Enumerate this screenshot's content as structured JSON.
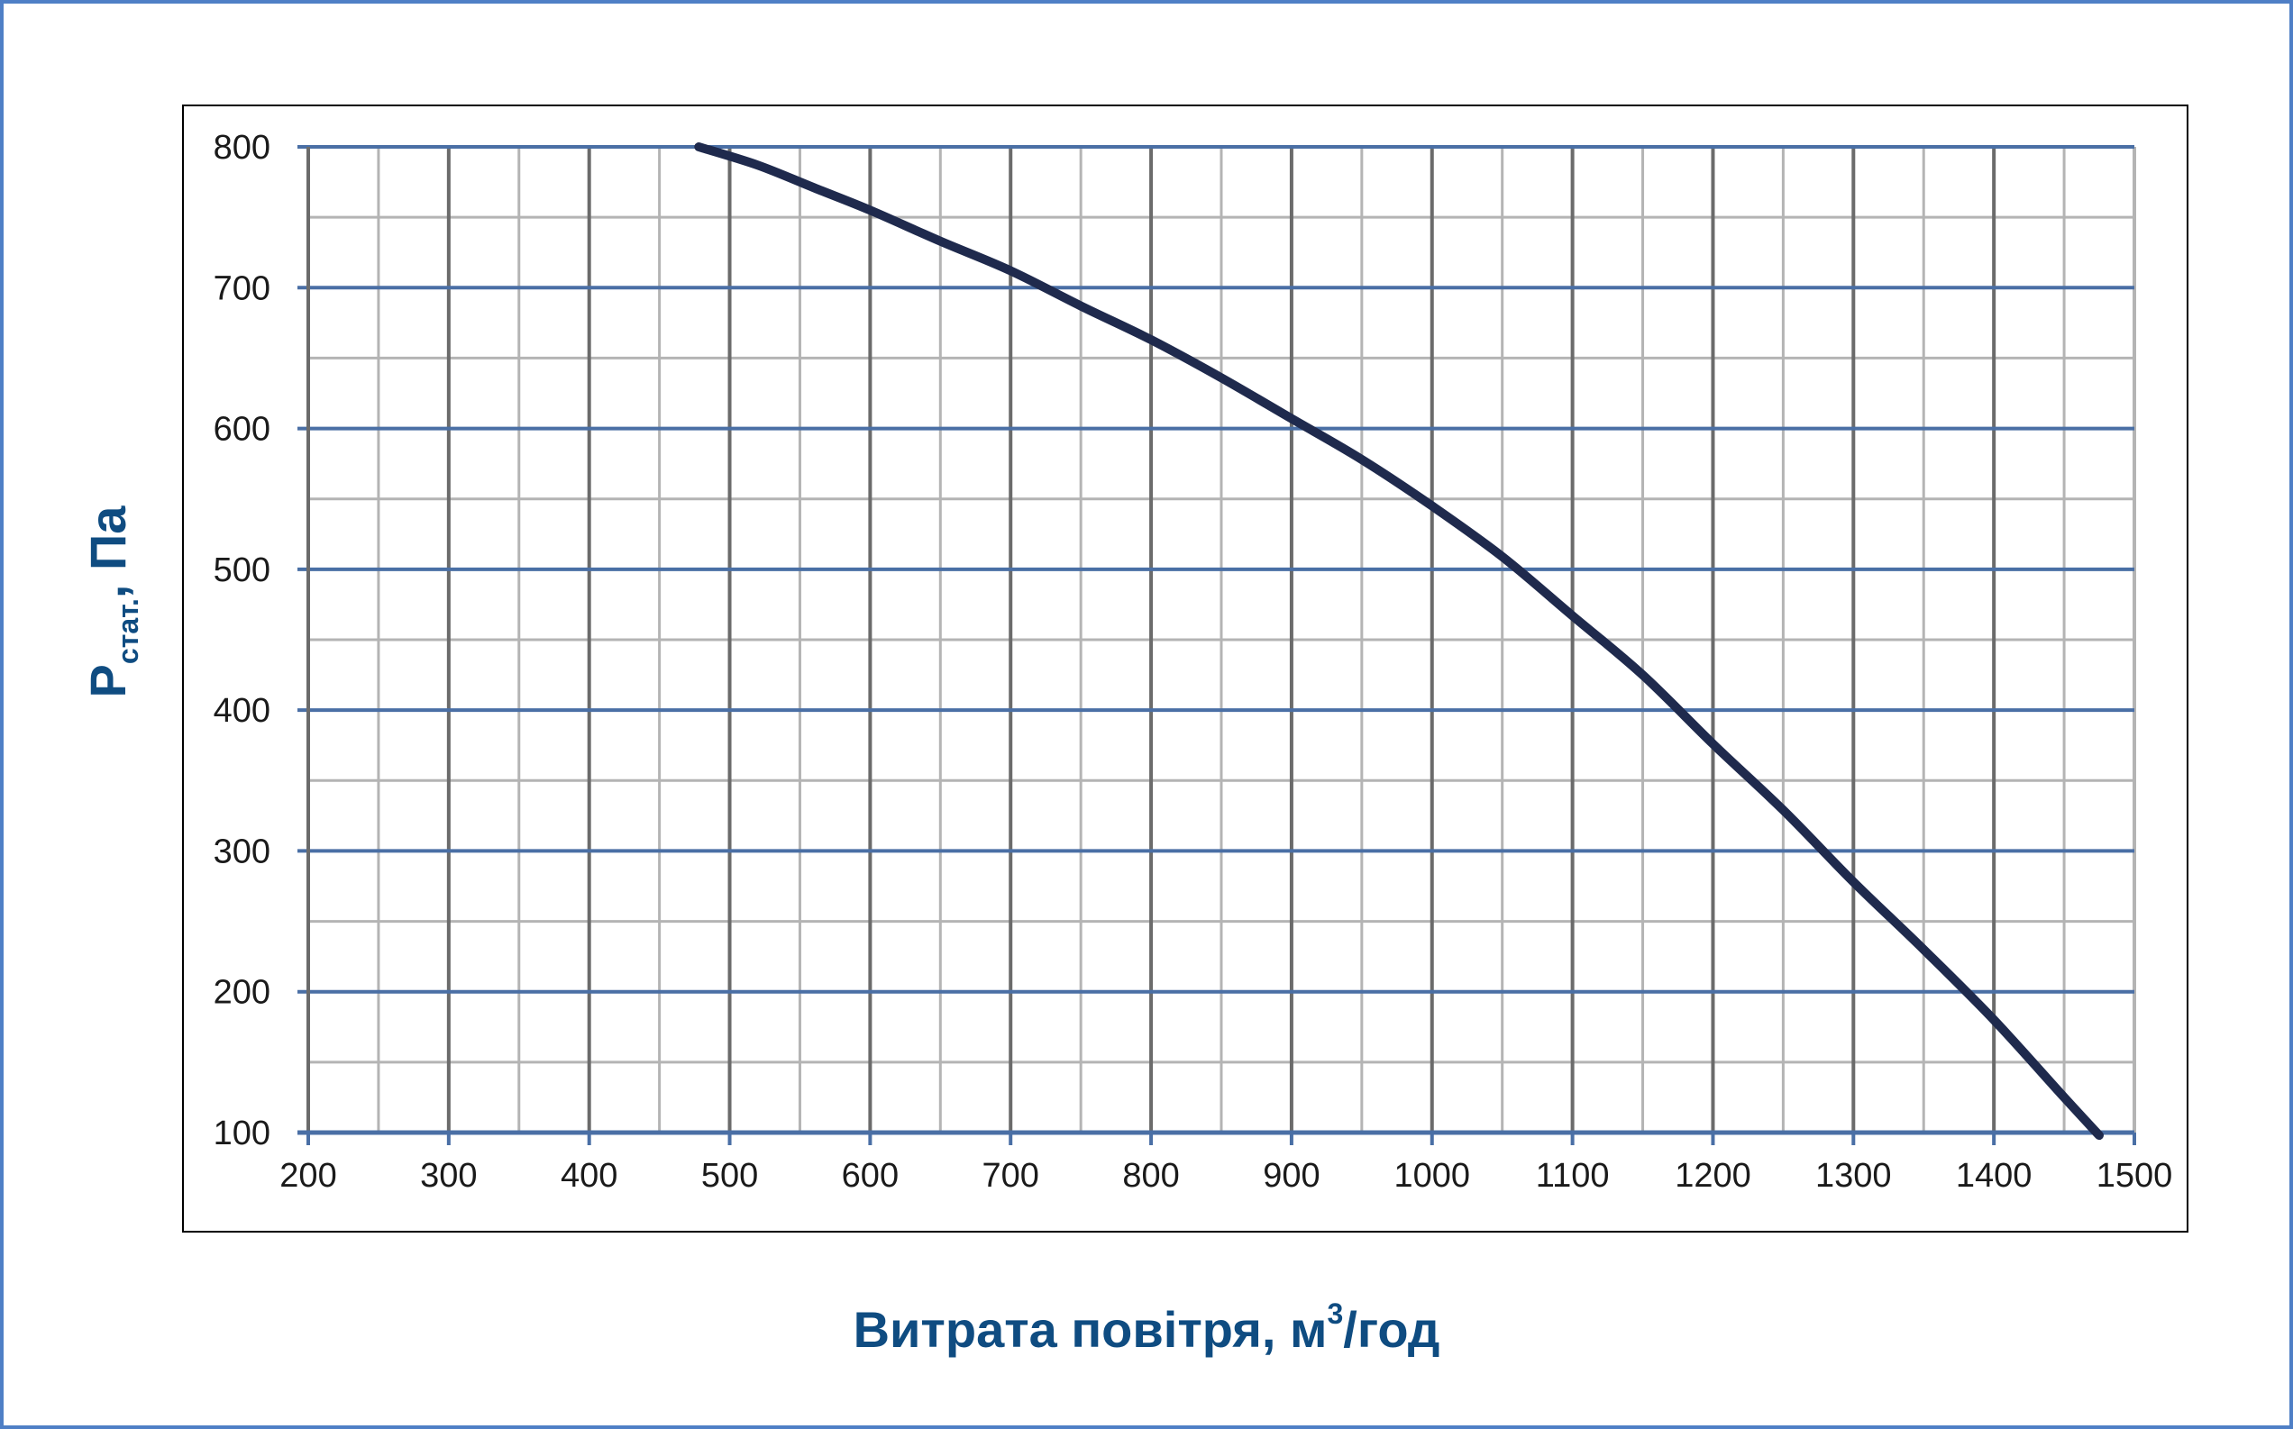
{
  "chart_data": {
    "type": "line",
    "title": "",
    "xlabel_main": "Витрата повітря, м",
    "xlabel_sup": "3",
    "xlabel_suffix": "/год",
    "ylabel_main": "P",
    "ylabel_sub": "стат.",
    "ylabel_suffix": ", Па",
    "xlim": [
      200,
      1500
    ],
    "ylim": [
      100,
      800
    ],
    "x_ticks": [
      200,
      300,
      400,
      500,
      600,
      700,
      800,
      900,
      1000,
      1100,
      1200,
      1300,
      1400,
      1500
    ],
    "y_ticks": [
      100,
      200,
      300,
      400,
      500,
      600,
      700,
      800
    ],
    "x_minor_step": 50,
    "y_minor_step": 50,
    "grid": true,
    "colors": {
      "curve": "#1f2a4d",
      "major_h_grid": "#4a6fa5",
      "major_v_grid": "#6b6b6b",
      "minor_grid": "#b4b4b4",
      "axis": "#4a6fa5",
      "title": "#0f4c81",
      "frame": "#4f7fc6"
    },
    "series": [
      {
        "x": [
          478,
          520,
          560,
          600,
          650,
          700,
          750,
          800,
          850,
          900,
          950,
          1000,
          1050,
          1100,
          1150,
          1200,
          1250,
          1300,
          1350,
          1400,
          1450,
          1475
        ],
        "y": [
          800,
          787,
          771,
          755,
          733,
          712,
          687,
          663,
          636,
          607,
          578,
          545,
          509,
          467,
          425,
          376,
          329,
          278,
          230,
          180,
          125,
          98
        ]
      }
    ]
  }
}
